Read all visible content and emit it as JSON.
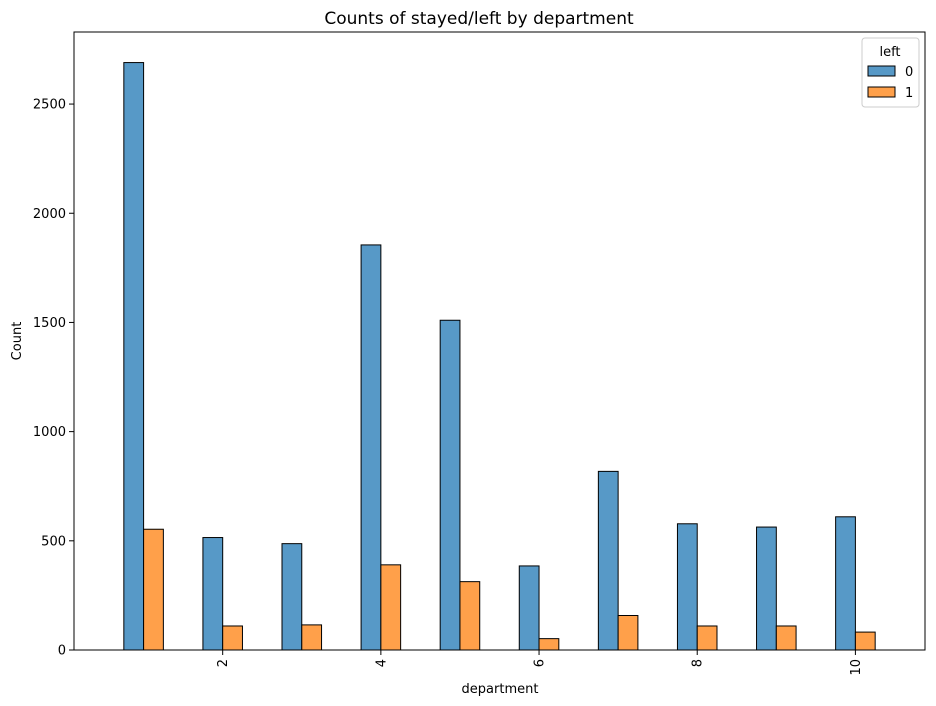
{
  "chart_data": {
    "type": "bar",
    "title": "Counts of stayed/left by department",
    "xlabel": "department",
    "ylabel": "Count",
    "x": [
      1,
      2,
      3,
      4,
      5,
      6,
      7,
      8,
      9,
      10
    ],
    "xticks": [
      "2",
      "4",
      "6",
      "8",
      "10"
    ],
    "xtick_values": [
      2,
      4,
      6,
      8,
      10
    ],
    "xtick_rotation": 90,
    "xlim": [
      0.12,
      10.88
    ],
    "yticks": [
      "0",
      "500",
      "1000",
      "1500",
      "2000",
      "2500"
    ],
    "ytick_values": [
      0,
      500,
      1000,
      1500,
      2000,
      2500
    ],
    "ylim": [
      0,
      2830
    ],
    "grid": false,
    "legend_title": "left",
    "legend_position": "top-right",
    "series": [
      {
        "name": "0",
        "color": "#5799C7",
        "values": [
          2690,
          515,
          487,
          1855,
          1510,
          385,
          818,
          578,
          563,
          610
        ]
      },
      {
        "name": "1",
        "color": "#FFA04A",
        "values": [
          553,
          110,
          115,
          390,
          313,
          52,
          158,
          110,
          110,
          82
        ]
      }
    ]
  }
}
